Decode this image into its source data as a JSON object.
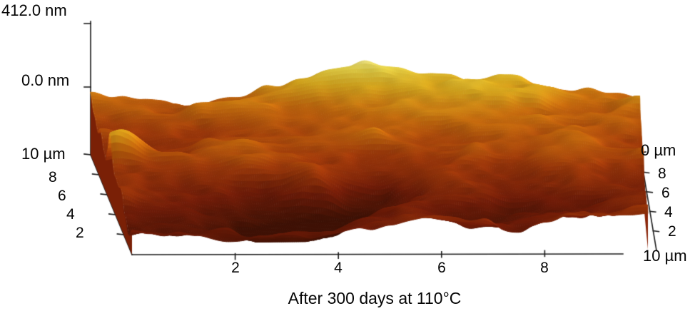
{
  "figure": {
    "caption": "After 300 days at 110°C",
    "z_axis": {
      "max_label": "412.0 nm",
      "min_label": "0.0 nm"
    },
    "left_axis": {
      "top_label": "10 µm",
      "ticks": [
        "8",
        "6",
        "4",
        "2"
      ]
    },
    "bottom_axis": {
      "ticks": [
        "2",
        "4",
        "6",
        "8"
      ]
    },
    "right_axis": {
      "top_label": "0 µm",
      "ticks": [
        "8",
        "6",
        "4",
        "2"
      ],
      "bottom_label": "10 µm"
    }
  },
  "chart_data": {
    "type": "heatmap",
    "subtype": "3d-surface-topography-afm",
    "title": "After 300 days at 110°C",
    "x_axis": {
      "label": "µm",
      "range": [
        0,
        10
      ],
      "ticks": [
        2,
        4,
        6,
        8,
        10
      ]
    },
    "y_axis": {
      "label": "µm",
      "range": [
        0,
        10
      ],
      "ticks": [
        2,
        4,
        6,
        8,
        10
      ]
    },
    "z_axis": {
      "label": "nm",
      "range": [
        0,
        412.0
      ],
      "tick_labels": [
        "0.0 nm",
        "412.0 nm"
      ]
    },
    "legend": "none",
    "grid": false,
    "colormap": {
      "low": "#4a1204",
      "mid": "#b85a0c",
      "high": "#eee896",
      "highlight": "#f4d8c8"
    },
    "description": "AFM-style 3D surface plot of a 10 µm × 10 µm scan area with height scale 0–412.0 nm after 300 days at 110°C. Rough topography: elevated yellow ridges toward the back of the scan, deep dark-brown valleys near the front-center, a tall spike at the far left edge, and a reddish side wall on the right edge."
  },
  "colors": {
    "background": "#ffffff",
    "axis": "#1a1a1a",
    "text": "#000000"
  }
}
